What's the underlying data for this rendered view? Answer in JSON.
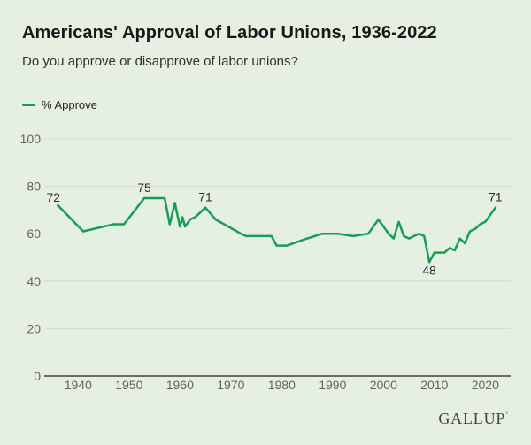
{
  "title": "Americans' Approval of Labor Unions, 1936-2022",
  "subtitle": "Do you approve or disapprove of labor unions?",
  "legend": {
    "label": "% Approve"
  },
  "branding": {
    "wordmark": "GALLUP",
    "trademark": "’"
  },
  "colors": {
    "background": "#e5f0e3",
    "line": "#189d57",
    "grid": "#d2dbcf",
    "axis": "#3a403a",
    "tick_text": "#60655f",
    "annotation_text": "#2d2d2d"
  },
  "chart_data": {
    "type": "line",
    "title": "Americans' Approval of Labor Unions, 1936-2022",
    "subtitle": "Do you approve or disapprove of labor unions?",
    "xlabel": "",
    "ylabel": "",
    "xlim": [
      1934,
      2025
    ],
    "ylim": [
      0,
      100
    ],
    "grid": "horizontal",
    "legend_position": "top-left",
    "x_ticks": [
      1940,
      1950,
      1960,
      1970,
      1980,
      1990,
      2000,
      2010,
      2020
    ],
    "y_ticks": [
      0,
      20,
      40,
      60,
      80,
      100
    ],
    "series": [
      {
        "name": "% Approve",
        "x": [
          1936,
          1941,
          1947,
          1949,
          1953,
          1957,
          1958,
          1959,
          1960,
          1960.5,
          1961,
          1962,
          1963,
          1965,
          1967,
          1972,
          1973,
          1978,
          1979,
          1981,
          1985,
          1988,
          1991,
          1994,
          1997,
          1999,
          2001,
          2002,
          2003,
          2004,
          2005,
          2006,
          2007,
          2008,
          2009,
          2010,
          2011,
          2012,
          2013,
          2014,
          2015,
          2016,
          2017,
          2018,
          2019,
          2020,
          2021,
          2022
        ],
        "values": [
          72,
          61,
          64,
          64,
          75,
          75,
          64,
          73,
          63,
          67,
          63,
          66,
          67,
          71,
          66,
          60,
          59,
          59,
          55,
          55,
          58,
          60,
          60,
          59,
          60,
          66,
          60,
          58,
          65,
          59,
          58,
          59,
          60,
          59,
          48,
          52,
          52,
          52,
          54,
          53,
          58,
          56,
          61,
          62,
          64,
          65,
          68,
          71
        ]
      }
    ],
    "annotations": [
      {
        "x": 1936,
        "value": 72,
        "label": "72",
        "placement": "above-left"
      },
      {
        "x": 1953,
        "value": 75,
        "label": "75",
        "placement": "above"
      },
      {
        "x": 1965,
        "value": 71,
        "label": "71",
        "placement": "above"
      },
      {
        "x": 2009,
        "value": 48,
        "label": "48",
        "placement": "below"
      },
      {
        "x": 2022,
        "value": 71,
        "label": "71",
        "placement": "above"
      }
    ]
  }
}
